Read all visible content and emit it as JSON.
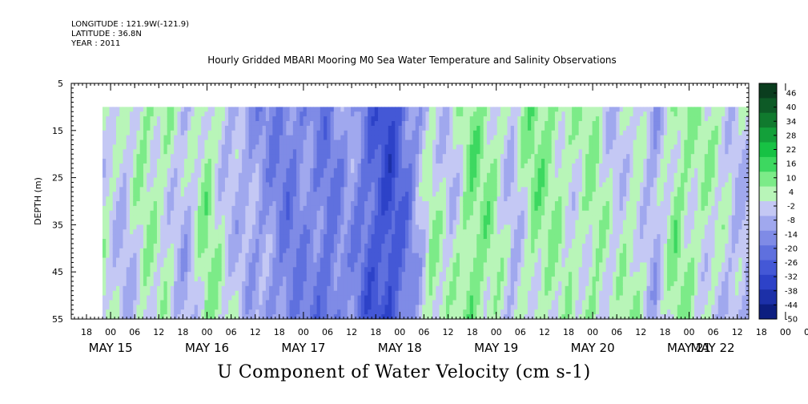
{
  "header": {
    "longitude": "LONGITUDE : 121.9W(-121.9)",
    "latitude": "LATITUDE : 36.8N",
    "year": "YEAR : 2011"
  },
  "title": "Hourly Gridded MBARI Mooring M0 Sea Water Temperature and Salinity Observations",
  "bottom_title": "U Component of Water Velocity (cm s-1)",
  "chart_data": {
    "type": "heatmap",
    "ylabel": "DEPTH (m)",
    "y_range": [
      5,
      55
    ],
    "y_inverted": true,
    "y_ticks": [
      "5",
      "15",
      "25",
      "35",
      "45",
      "55"
    ],
    "x_hour_ticks": [
      "18",
      "00",
      "06",
      "12",
      "18",
      "00",
      "06",
      "12",
      "18",
      "00",
      "06",
      "12",
      "18",
      "00",
      "06",
      "12",
      "18",
      "00",
      "06",
      "12",
      "18",
      "00",
      "06",
      "12",
      "18",
      "00",
      "06",
      "12",
      "18",
      "00",
      "06",
      "12"
    ],
    "x_date_labels": [
      "MAY 15",
      "MAY 16",
      "MAY 17",
      "MAY 18",
      "MAY 19",
      "MAY 20",
      "MAY 21",
      "MAY 22"
    ],
    "data_depth_range_m": [
      10,
      55
    ],
    "colorbar": {
      "labels": [
        "46",
        "40",
        "34",
        "28",
        "22",
        "16",
        "10",
        "4",
        "-2",
        "-8",
        "-14",
        "-20",
        "-26",
        "-32",
        "-38",
        "-44",
        "-50"
      ],
      "range": [
        -50,
        52
      ],
      "colors": [
        "#0a3d1e",
        "#0d5a26",
        "#107a2e",
        "#13a03a",
        "#17c244",
        "#3dd860",
        "#7ceb88",
        "#b8f5b8",
        "#c4c8f4",
        "#a0a8ee",
        "#7f8be6",
        "#5f70de",
        "#4458d6",
        "#2d42c8",
        "#1c30a8",
        "#0d1e80"
      ]
    },
    "grid": "none",
    "legend": "colorbar-right",
    "time_column_means_cm_s": [
      {
        "hour": 0,
        "u": 2
      },
      {
        "hour": 6,
        "u": -4
      },
      {
        "hour": 12,
        "u": 5
      },
      {
        "hour": 18,
        "u": 3
      },
      {
        "hour": 24,
        "u": -6
      },
      {
        "hour": 30,
        "u": 8
      },
      {
        "hour": 36,
        "u": -2
      },
      {
        "hour": 42,
        "u": -8
      },
      {
        "hour": 48,
        "u": -12
      },
      {
        "hour": 54,
        "u": -18
      },
      {
        "hour": 60,
        "u": -14
      },
      {
        "hour": 66,
        "u": -20
      },
      {
        "hour": 72,
        "u": -10
      },
      {
        "hour": 78,
        "u": -24
      },
      {
        "hour": 84,
        "u": -30
      },
      {
        "hour": 90,
        "u": -16
      },
      {
        "hour": 96,
        "u": 4
      },
      {
        "hour": 102,
        "u": -2
      },
      {
        "hour": 108,
        "u": 10
      },
      {
        "hour": 114,
        "u": 6
      },
      {
        "hour": 120,
        "u": -4
      },
      {
        "hour": 126,
        "u": 8
      },
      {
        "hour": 132,
        "u": 6
      },
      {
        "hour": 138,
        "u": 2
      },
      {
        "hour": 144,
        "u": 6
      },
      {
        "hour": 150,
        "u": -2
      },
      {
        "hour": 156,
        "u": 4
      },
      {
        "hour": 162,
        "u": -8
      },
      {
        "hour": 168,
        "u": 8
      },
      {
        "hour": 174,
        "u": 4
      },
      {
        "hour": 180,
        "u": 2
      },
      {
        "hour": 186,
        "u": -4
      }
    ]
  }
}
